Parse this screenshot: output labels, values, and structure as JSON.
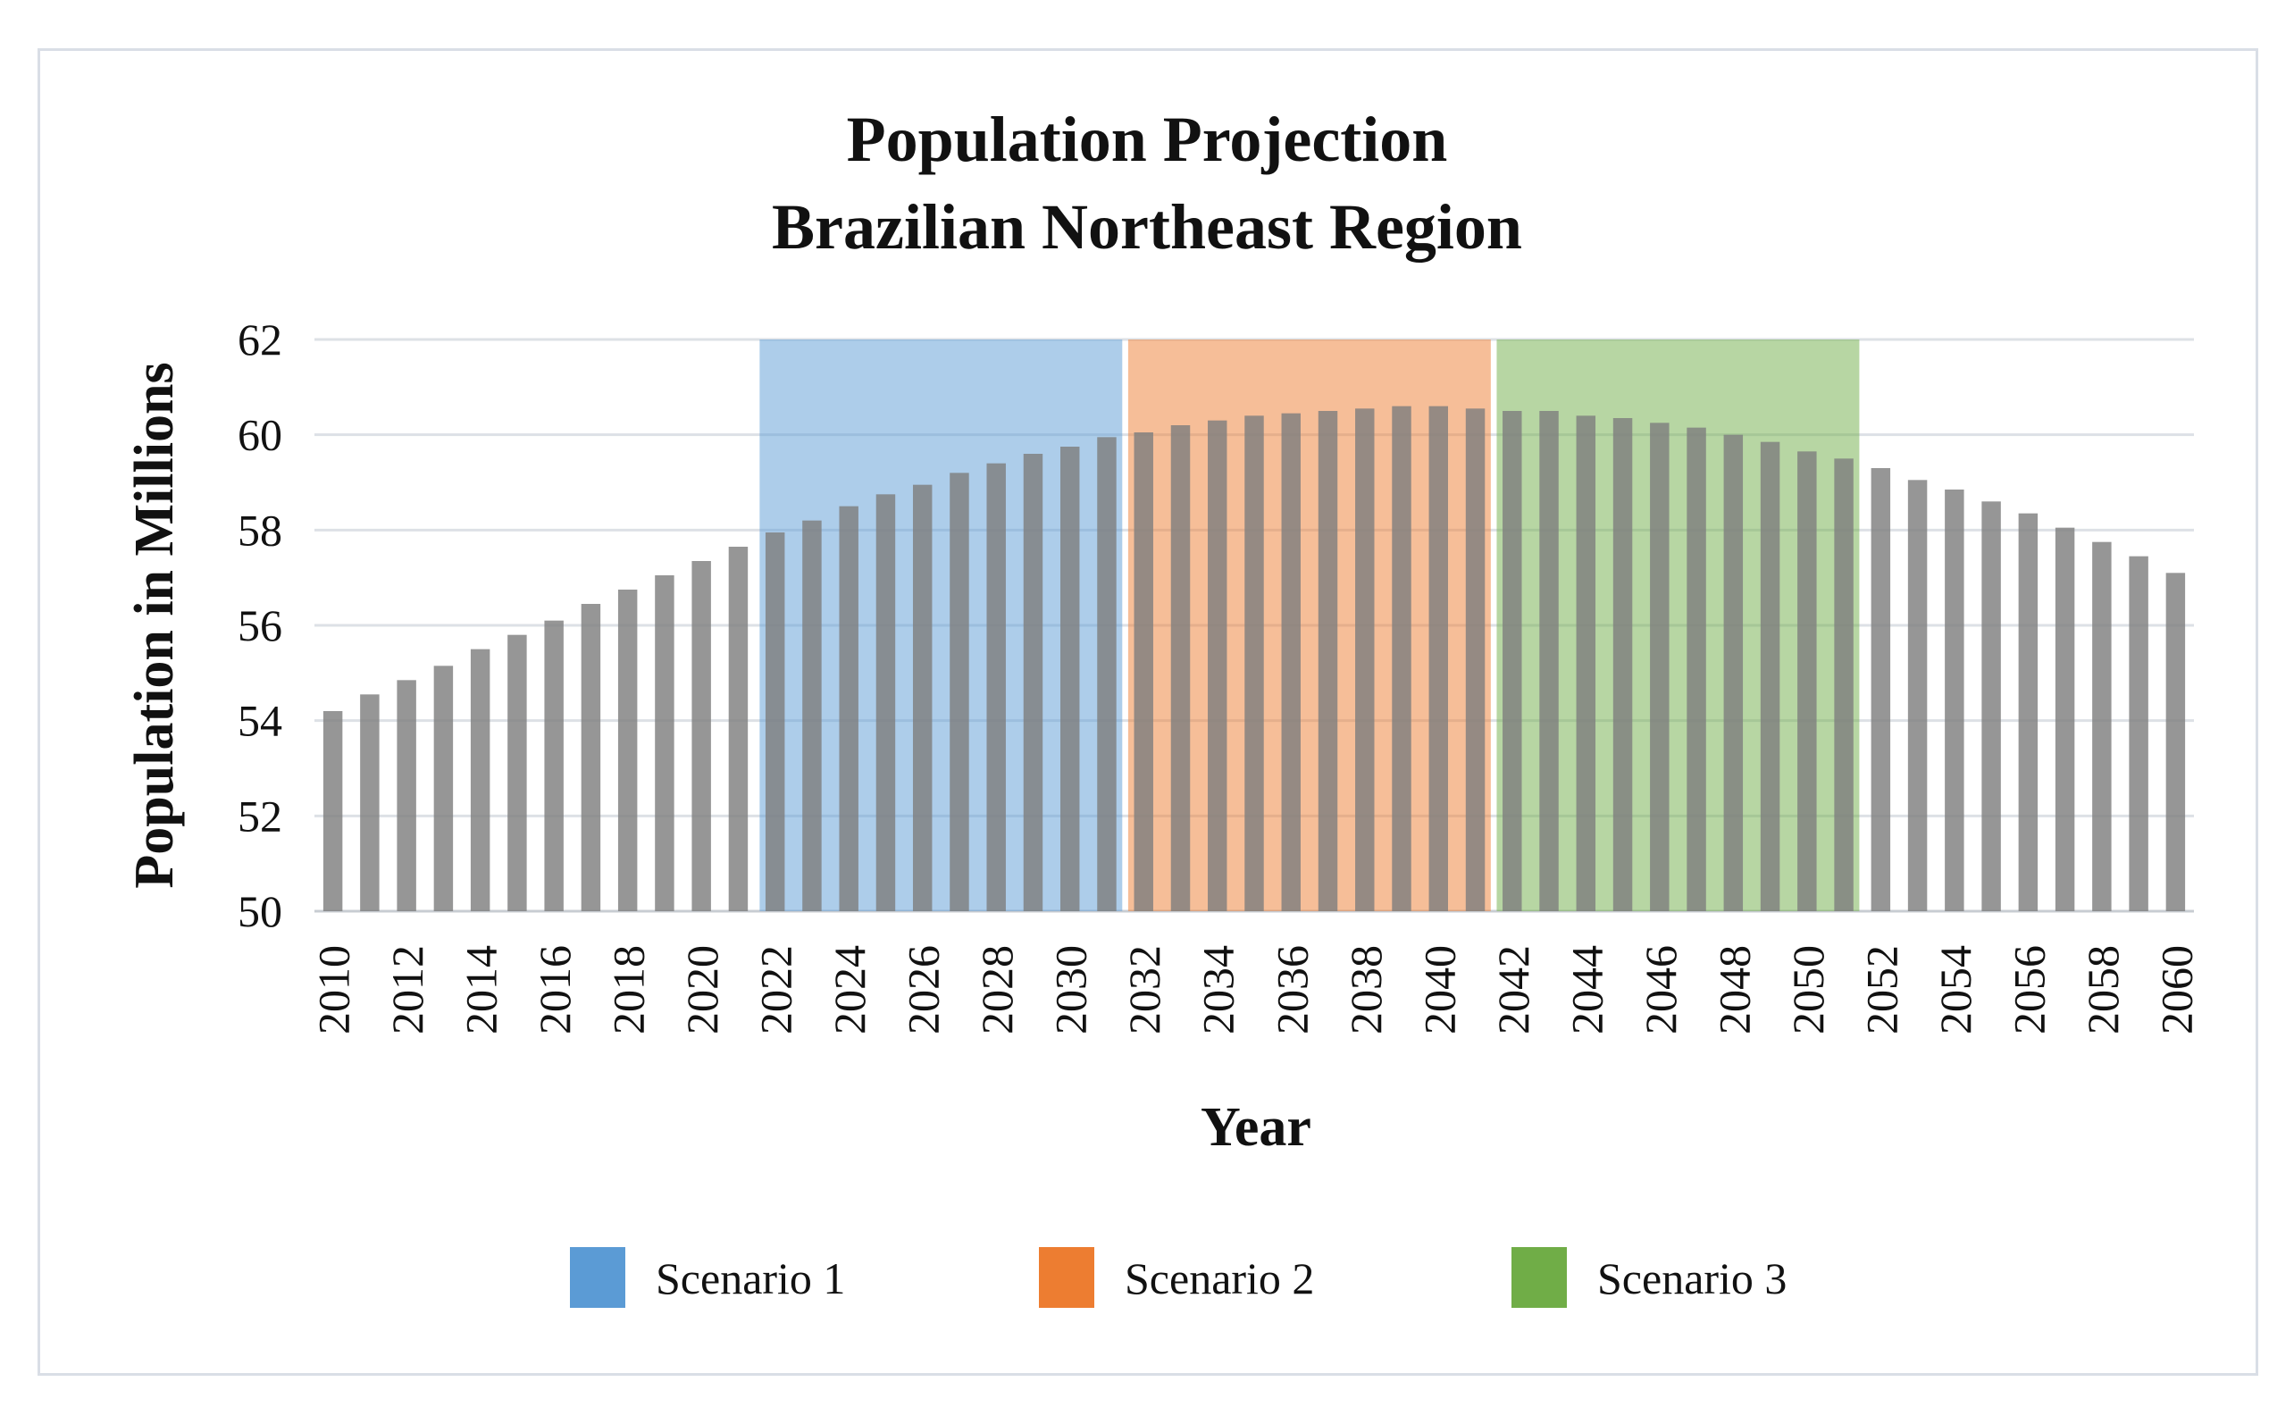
{
  "chart_data": {
    "type": "bar",
    "title": [
      "Population Projection",
      "Brazilian Northeast Region"
    ],
    "xlabel": "Year",
    "ylabel": "Population in Millions",
    "ylim": [
      50,
      62
    ],
    "yticks": [
      50,
      52,
      54,
      56,
      58,
      60,
      62
    ],
    "grid": true,
    "bar_color": "#7f7f7f",
    "x": [
      2010,
      2011,
      2012,
      2013,
      2014,
      2015,
      2016,
      2017,
      2018,
      2019,
      2020,
      2021,
      2022,
      2023,
      2024,
      2025,
      2026,
      2027,
      2028,
      2029,
      2030,
      2031,
      2032,
      2033,
      2034,
      2035,
      2036,
      2037,
      2038,
      2039,
      2040,
      2041,
      2042,
      2043,
      2044,
      2045,
      2046,
      2047,
      2048,
      2049,
      2050,
      2051,
      2052,
      2053,
      2054,
      2055,
      2056,
      2057,
      2058,
      2059,
      2060
    ],
    "xtick_labels": [
      "2010",
      "2012",
      "2014",
      "2016",
      "2018",
      "2020",
      "2022",
      "2024",
      "2026",
      "2028",
      "2030",
      "2032",
      "2034",
      "2036",
      "2038",
      "2040",
      "2042",
      "2044",
      "2046",
      "2048",
      "2050",
      "2052",
      "2054",
      "2056",
      "2058",
      "2060"
    ],
    "values": [
      54.2,
      54.55,
      54.85,
      55.15,
      55.5,
      55.8,
      56.1,
      56.45,
      56.75,
      57.05,
      57.35,
      57.65,
      57.95,
      58.2,
      58.5,
      58.75,
      58.95,
      59.2,
      59.4,
      59.6,
      59.75,
      59.95,
      60.05,
      60.2,
      60.3,
      60.4,
      60.45,
      60.5,
      60.55,
      60.6,
      60.6,
      60.55,
      60.5,
      60.5,
      60.4,
      60.35,
      60.25,
      60.15,
      60.0,
      59.85,
      59.65,
      59.5,
      59.3,
      59.05,
      58.85,
      58.6,
      58.35,
      58.05,
      57.75,
      57.45,
      57.1
    ],
    "scenarios": [
      {
        "name": "Scenario 1",
        "start": 2022,
        "end": 2031,
        "color": "#5b9bd5"
      },
      {
        "name": "Scenario 2",
        "start": 2032,
        "end": 2041,
        "color": "#ed7d31"
      },
      {
        "name": "Scenario 3",
        "start": 2042,
        "end": 2051,
        "color": "#70ad47"
      }
    ]
  }
}
